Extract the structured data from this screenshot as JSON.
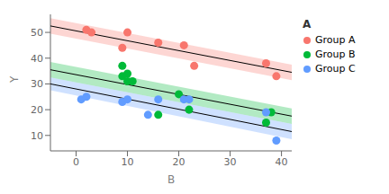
{
  "chart_data": {
    "type": "scatter",
    "xlabel": "B",
    "ylabel": "Y",
    "legend_title": "A",
    "legend": "right",
    "grid": false,
    "xlim": [
      -5,
      42
    ],
    "ylim": [
      4,
      57
    ],
    "xticks": [
      0,
      10,
      20,
      30,
      40
    ],
    "yticks": [
      10,
      20,
      30,
      40,
      50
    ],
    "series": [
      {
        "name": "Group A",
        "color": "#F8766D",
        "x": [
          2,
          3,
          9,
          10,
          16,
          21,
          23,
          37,
          39
        ],
        "values": [
          51,
          50,
          44,
          50,
          46,
          45,
          37,
          38,
          33
        ],
        "fit_x": [
          -5,
          42
        ],
        "fit_y": [
          52.5,
          34.5
        ],
        "band_x": [
          -5,
          42
        ],
        "band_upper": [
          55.5,
          37.5
        ],
        "band_lower": [
          49.5,
          31.5
        ]
      },
      {
        "name": "Group B",
        "color": "#00BA38",
        "x": [
          9,
          9,
          10,
          10,
          11,
          16,
          20,
          22,
          37,
          38
        ],
        "values": [
          37,
          33,
          31,
          34,
          31,
          18,
          26,
          20,
          15,
          19
        ],
        "fit_x": [
          -5,
          42
        ],
        "fit_y": [
          35.5,
          17.5
        ],
        "band_x": [
          -5,
          42
        ],
        "band_upper": [
          38.5,
          20.5
        ],
        "band_lower": [
          32.5,
          14.5
        ]
      },
      {
        "name": "Group C",
        "color": "#619CFF",
        "x": [
          1,
          2,
          9,
          10,
          14,
          16,
          21,
          22,
          37,
          39
        ],
        "values": [
          24,
          25,
          23,
          24,
          18,
          24,
          24,
          24,
          19,
          8
        ],
        "fit_x": [
          -5,
          42
        ],
        "fit_y": [
          30.0,
          11.5
        ],
        "band_x": [
          -5,
          42
        ],
        "band_upper": [
          32.5,
          14.5
        ],
        "band_lower": [
          27.5,
          8.5
        ]
      }
    ]
  }
}
